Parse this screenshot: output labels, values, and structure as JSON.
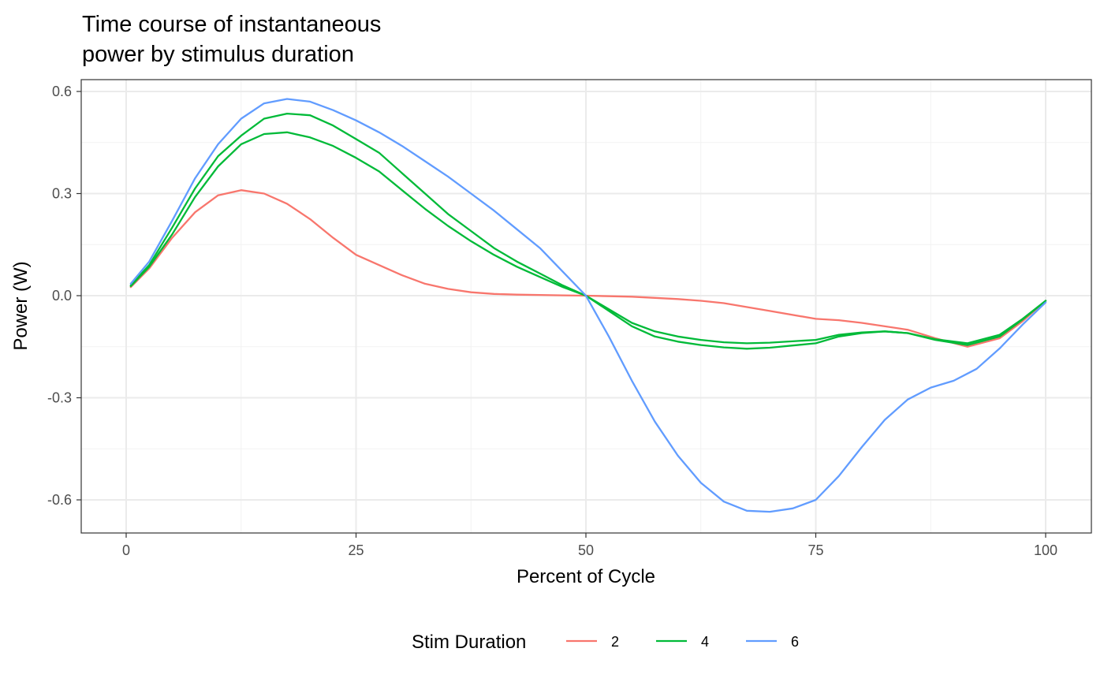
{
  "chart_data": {
    "type": "line",
    "title_lines": [
      "Time course of instantaneous",
      "power by stimulus duration"
    ],
    "xlabel": "Percent of Cycle",
    "ylabel": "Power (W)",
    "xlim": [
      0,
      100
    ],
    "ylim": [
      -0.6,
      0.6
    ],
    "x_ticks": [
      0,
      25,
      50,
      75,
      100
    ],
    "y_ticks": [
      0.6,
      0.3,
      0.0,
      -0.3,
      -0.6
    ],
    "x_tick_labels": [
      "0",
      "25",
      "50",
      "75",
      "100"
    ],
    "y_tick_labels": [
      "0.6",
      "0.3",
      "0.0",
      "-0.3",
      "-0.6"
    ],
    "grid": true,
    "legend": {
      "title": "Stim Duration",
      "position": "bottom",
      "entries": [
        {
          "label": "2",
          "color": "#F8766D"
        },
        {
          "label": "4",
          "color": "#00BA38"
        },
        {
          "label": "6",
          "color": "#619CFF"
        }
      ]
    },
    "series": [
      {
        "name": "2",
        "color": "#F8766D",
        "x": [
          0.5,
          2.5,
          5,
          7.5,
          10,
          12.5,
          15,
          17.5,
          20,
          22.5,
          25,
          27.5,
          30,
          32.5,
          35,
          37.5,
          40,
          42.5,
          45,
          47.5,
          50,
          55,
          60,
          62.5,
          65,
          70,
          75,
          77.5,
          80,
          85,
          88,
          91.5,
          95,
          97.5,
          100
        ],
        "y": [
          0.025,
          0.08,
          0.17,
          0.245,
          0.295,
          0.31,
          0.3,
          0.27,
          0.225,
          0.17,
          0.12,
          0.09,
          0.06,
          0.035,
          0.02,
          0.01,
          0.005,
          0.003,
          0.002,
          0.001,
          0.0,
          -0.003,
          -0.01,
          -0.015,
          -0.022,
          -0.045,
          -0.068,
          -0.072,
          -0.08,
          -0.1,
          -0.125,
          -0.15,
          -0.125,
          -0.075,
          -0.015
        ]
      },
      {
        "name": "4",
        "color": "#00BA38",
        "x": [
          0.5,
          2.5,
          5,
          7.5,
          10,
          12.5,
          15,
          17.5,
          20,
          22.5,
          25,
          27.5,
          30,
          32.5,
          35,
          37.5,
          40,
          42.5,
          45,
          47.5,
          50,
          55,
          57.5,
          60,
          62.5,
          65,
          67.5,
          70,
          75,
          77.5,
          80,
          82.5,
          85,
          88,
          91.5,
          95,
          97.5,
          100
        ],
        "y": [
          0.03,
          0.09,
          0.2,
          0.315,
          0.41,
          0.47,
          0.52,
          0.535,
          0.53,
          0.5,
          0.46,
          0.42,
          0.36,
          0.3,
          0.24,
          0.19,
          0.14,
          0.1,
          0.065,
          0.03,
          0.0,
          -0.09,
          -0.12,
          -0.135,
          -0.145,
          -0.152,
          -0.156,
          -0.153,
          -0.14,
          -0.12,
          -0.11,
          -0.105,
          -0.11,
          -0.13,
          -0.145,
          -0.12,
          -0.07,
          -0.015
        ]
      },
      {
        "name": "4",
        "color": "#00BA38",
        "x": [
          0.5,
          2.5,
          5,
          7.5,
          10,
          12.5,
          15,
          17.5,
          20,
          22.5,
          25,
          27.5,
          30,
          32.5,
          35,
          37.5,
          40,
          42.5,
          45,
          47.5,
          50,
          55,
          57.5,
          60,
          62.5,
          65,
          67.5,
          70,
          75,
          77.5,
          80,
          82.5,
          85,
          88,
          91.5,
          95,
          97.5,
          100
        ],
        "y": [
          0.028,
          0.085,
          0.18,
          0.29,
          0.38,
          0.445,
          0.475,
          0.48,
          0.465,
          0.44,
          0.405,
          0.365,
          0.31,
          0.255,
          0.205,
          0.16,
          0.12,
          0.085,
          0.055,
          0.025,
          0.0,
          -0.08,
          -0.105,
          -0.12,
          -0.13,
          -0.137,
          -0.14,
          -0.138,
          -0.13,
          -0.115,
          -0.108,
          -0.105,
          -0.11,
          -0.128,
          -0.14,
          -0.115,
          -0.068,
          -0.015
        ]
      },
      {
        "name": "6",
        "color": "#619CFF",
        "x": [
          0.5,
          2.5,
          5,
          7.5,
          10,
          12.5,
          15,
          17.5,
          20,
          22.5,
          25,
          27.5,
          30,
          32.5,
          35,
          37.5,
          40,
          42.5,
          45,
          47.5,
          50,
          52.5,
          55,
          57.5,
          60,
          62.5,
          65,
          67.5,
          70,
          72.5,
          75,
          77.5,
          80,
          82.5,
          85,
          87.5,
          90,
          92.5,
          95,
          97.5,
          100
        ],
        "y": [
          0.035,
          0.1,
          0.22,
          0.345,
          0.445,
          0.52,
          0.565,
          0.578,
          0.57,
          0.545,
          0.515,
          0.48,
          0.44,
          0.395,
          0.35,
          0.3,
          0.25,
          0.195,
          0.14,
          0.07,
          0.0,
          -0.12,
          -0.25,
          -0.37,
          -0.47,
          -0.55,
          -0.605,
          -0.632,
          -0.635,
          -0.625,
          -0.6,
          -0.53,
          -0.445,
          -0.365,
          -0.305,
          -0.27,
          -0.25,
          -0.215,
          -0.155,
          -0.085,
          -0.02
        ]
      }
    ]
  }
}
